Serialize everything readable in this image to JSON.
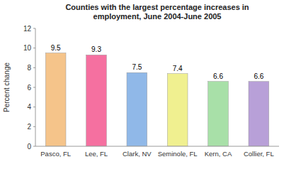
{
  "chart_data": {
    "type": "bar",
    "title": "Counties with the largest percentage increases in\nemployment, June 2004-June 2005",
    "categories": [
      "Pasco, FL",
      "Lee, FL",
      "Clark, NV",
      "Seminole, FL",
      "Kern, CA",
      "Collier, FL"
    ],
    "values": [
      9.5,
      9.3,
      7.5,
      7.4,
      6.6,
      6.6
    ],
    "colors": [
      "#F5C48A",
      "#F570A0",
      "#90B8E8",
      "#F0F090",
      "#A8E0A8",
      "#B8A0D8"
    ],
    "ylabel": "Percent change",
    "ylim": [
      0,
      12
    ],
    "yticks": [
      0,
      2,
      4,
      6,
      8,
      10,
      12
    ],
    "data_labels": true,
    "grid": false
  }
}
